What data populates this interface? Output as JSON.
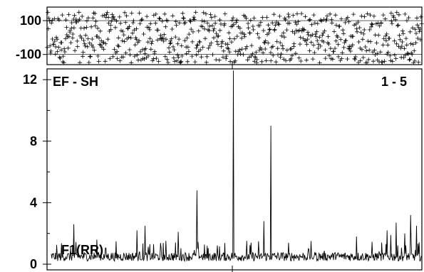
{
  "chart_data": [
    {
      "panel": "top",
      "type": "scatter",
      "marker": "+",
      "ytick_labels": [
        "100",
        "-100"
      ],
      "yticks": [
        100,
        -100
      ],
      "ylim": [
        -160,
        180
      ],
      "xlim": [
        0,
        700
      ],
      "n_points": 700,
      "band_center": 0,
      "band_halfwidth": 150
    },
    {
      "panel": "bottom",
      "type": "line",
      "title_left": "EF - SH",
      "title_right": "1 - 5",
      "annotation": "F1(RR)",
      "ytick_labels": [
        "12",
        "8",
        "4",
        "0"
      ],
      "yticks": [
        12,
        8,
        4,
        0
      ],
      "ylim": [
        0,
        12.7
      ],
      "xlim": [
        0,
        700
      ],
      "n_points": 700,
      "baseline": 0.5,
      "peaks": [
        {
          "x": 50,
          "y": 2.6
        },
        {
          "x": 93,
          "y": 1.6
        },
        {
          "x": 168,
          "y": 2.2
        },
        {
          "x": 183,
          "y": 2.5
        },
        {
          "x": 245,
          "y": 2.1
        },
        {
          "x": 280,
          "y": 4.8
        },
        {
          "x": 348,
          "y": 12.6
        },
        {
          "x": 405,
          "y": 2.8
        },
        {
          "x": 418,
          "y": 9.0
        },
        {
          "x": 578,
          "y": 1.8
        },
        {
          "x": 635,
          "y": 2.2
        },
        {
          "x": 642,
          "y": 1.9
        },
        {
          "x": 652,
          "y": 2.7
        },
        {
          "x": 668,
          "y": 2.0
        },
        {
          "x": 679,
          "y": 3.2
        },
        {
          "x": 690,
          "y": 2.5
        }
      ]
    }
  ]
}
